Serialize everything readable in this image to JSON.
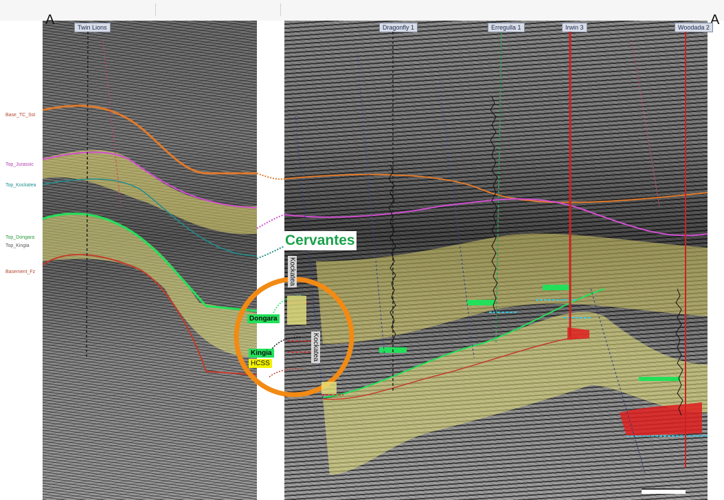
{
  "corner_labels": {
    "left": "A",
    "right": "A"
  },
  "wells": [
    {
      "name": "Twin Lions",
      "x": 0
    },
    {
      "name": "Dragonfly 1",
      "x": 0
    },
    {
      "name": "Erregulla 1",
      "x": 0
    },
    {
      "name": "Irwin 3",
      "x": 0
    },
    {
      "name": "Woodada 2",
      "x": 0
    }
  ],
  "left_horizon_labels": [
    "Base_TC_Sst",
    "Top_Jurassic",
    "Top_Kockatea",
    "Top_Dongara",
    "Top_Kingia",
    "Basement_Fz"
  ],
  "annotations": {
    "cervantes": "Cervantes",
    "kockatea_upper": "Kockatea",
    "kockatea_lower": "Kockatea",
    "dongara": "Dongara",
    "kingia": "Kingia",
    "hcss": "HCSS"
  },
  "colors": {
    "highlight_circle": "#f28a14",
    "kingia_zone": "#e8e27a",
    "gas_red": "#e02020",
    "green_marker": "#23e05a",
    "pink_horizon": "#d14fd1",
    "teal_horizon": "#1f8e8e",
    "orange_horizon": "#e07a2b"
  }
}
